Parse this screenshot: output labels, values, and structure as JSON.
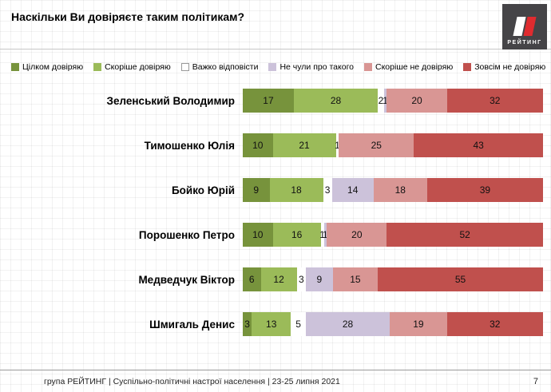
{
  "title": "Наскільки Ви довіряєте таким політикам?",
  "logo": {
    "text": "РЕЙТИНГ"
  },
  "footer": {
    "left": "група РЕЙТИНГ | Суспільно-політичні настрої населення | 23-25 липня 2021",
    "page": "7"
  },
  "chart_data": {
    "type": "bar",
    "stacked": true,
    "orientation": "horizontal",
    "title": "Наскільки Ви довіряєте таким політикам?",
    "xlim": [
      0,
      100
    ],
    "legend_position": "top",
    "categories": [
      "Зеленський Володимир",
      "Тимошенко Юлія",
      "Бойко Юрій",
      "Порошенко Петро",
      "Медведчук Віктор",
      "Шмигаль Денис"
    ],
    "series": [
      {
        "name": "Цілком довіряю",
        "color": "#77933c",
        "values": [
          17,
          10,
          9,
          10,
          6,
          3
        ]
      },
      {
        "name": "Скоріше довіряю",
        "color": "#9bbb59",
        "values": [
          28,
          21,
          18,
          16,
          12,
          13
        ]
      },
      {
        "name": "Важко відповісти",
        "color": "#ffffff",
        "values": [
          2,
          1,
          3,
          1,
          3,
          5
        ]
      },
      {
        "name": "Не чули про такого",
        "color": "#ccc2da",
        "values": [
          1,
          0,
          14,
          1,
          9,
          28
        ]
      },
      {
        "name": "Скоріше не довіряю",
        "color": "#d99694",
        "values": [
          20,
          25,
          18,
          20,
          15,
          19
        ]
      },
      {
        "name": "Зовсім не довіряю",
        "color": "#c0504d",
        "values": [
          32,
          43,
          39,
          52,
          55,
          32
        ]
      }
    ]
  }
}
